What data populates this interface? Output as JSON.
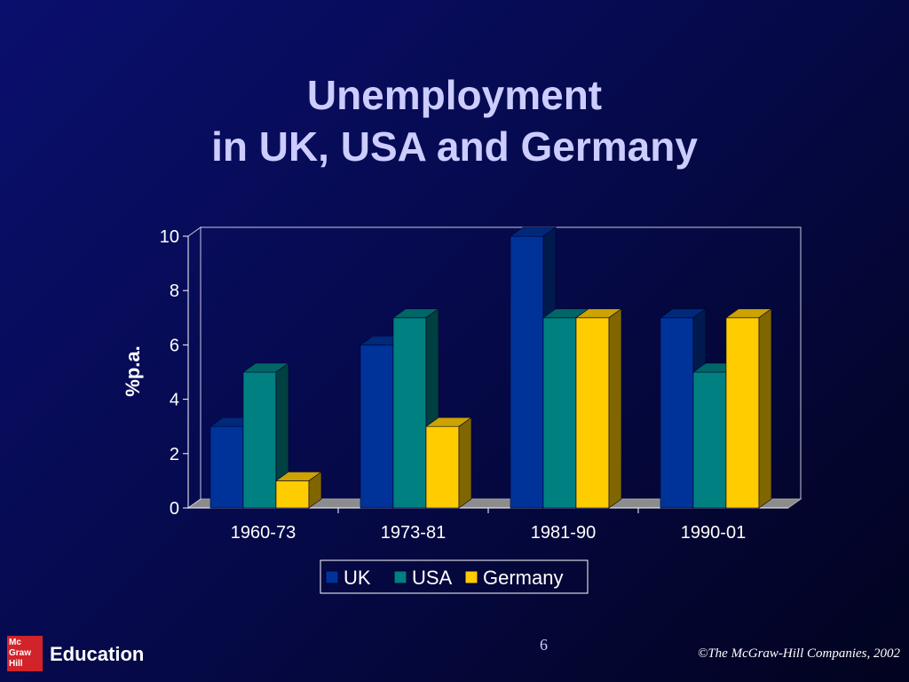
{
  "slide": {
    "title_line1": "Unemployment",
    "title_line2": "in UK, USA and Germany",
    "page_number": "6",
    "copyright": "©The McGraw-Hill Companies, 2002",
    "footer_brand": "Education",
    "logo_text": [
      "Mc",
      "Graw",
      "Hill"
    ]
  },
  "colors": {
    "uk": "#003399",
    "usa": "#008080",
    "germany": "#ffcc00",
    "title": "#ccccff"
  },
  "chart_data": {
    "type": "bar",
    "title": "",
    "categories": [
      "1960-73",
      "1973-81",
      "1981-90",
      "1990-01"
    ],
    "series": [
      {
        "name": "UK",
        "values": [
          3,
          6,
          10,
          7
        ]
      },
      {
        "name": "USA",
        "values": [
          5,
          7,
          7,
          5
        ]
      },
      {
        "name": "Germany",
        "values": [
          1,
          3,
          7,
          7
        ]
      }
    ],
    "xlabel": "",
    "ylabel": "%p.a.",
    "ylim": [
      0,
      10
    ],
    "yticks": [
      "0",
      "2",
      "4",
      "6",
      "8",
      "10"
    ],
    "grid": false,
    "legend_position": "bottom",
    "style": "3d"
  }
}
